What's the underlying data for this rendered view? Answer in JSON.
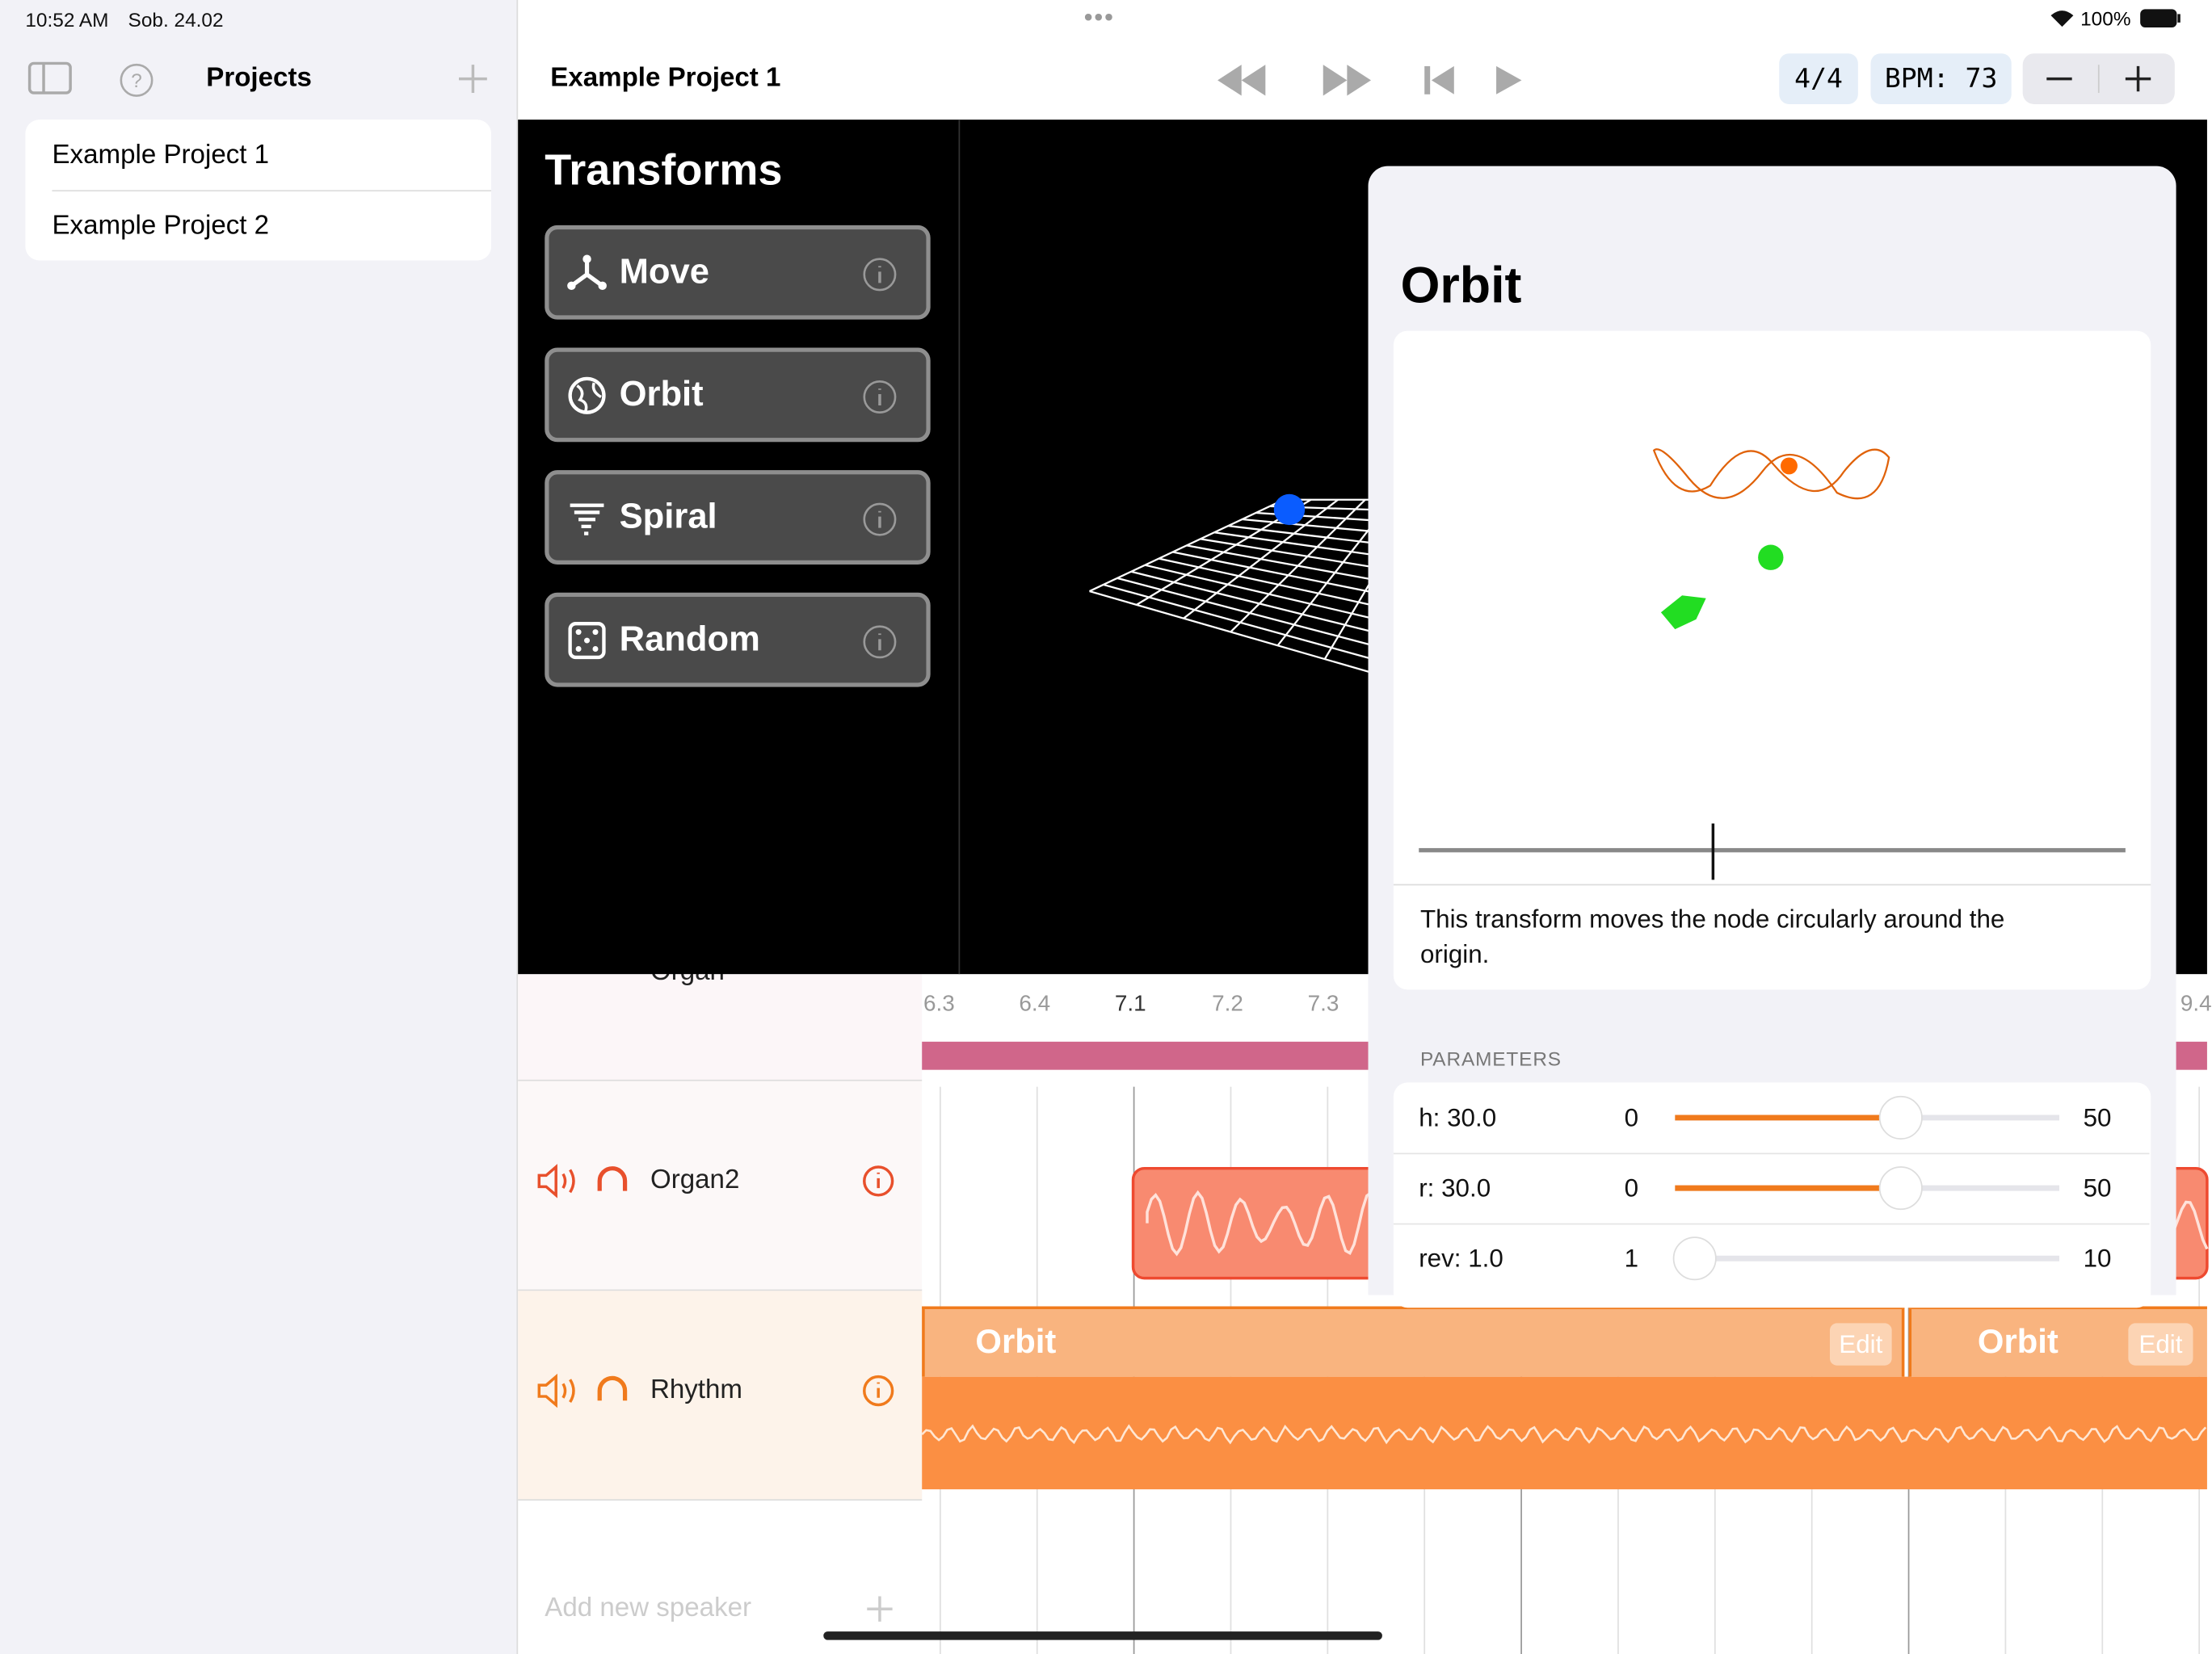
{
  "status_bar": {
    "time": "10:52 AM",
    "date": "Sob. 24.02",
    "battery": "100%"
  },
  "sidebar": {
    "title": "Projects",
    "projects": [
      "Example Project 1",
      "Example Project 2"
    ]
  },
  "toolbar": {
    "title": "Example Project 1",
    "time_signature": "4/4",
    "bpm": "BPM: 73"
  },
  "transforms": {
    "title": "Transforms",
    "items": [
      "Move",
      "Orbit",
      "Spiral",
      "Random"
    ]
  },
  "popover": {
    "title": "Orbit",
    "description": "This transform moves the node circularly around the origin.",
    "parameters_header": "PARAMETERS",
    "parameters": [
      {
        "label": "h: 30.0",
        "value": 30,
        "min": 0,
        "max": 50
      },
      {
        "label": "r: 30.0",
        "value": 30,
        "min": 0,
        "max": 50
      },
      {
        "label": "rev: 1.0",
        "value": 1,
        "min": 1,
        "max": 10
      }
    ]
  },
  "timeline": {
    "ticks": [
      "6.3",
      "6.4",
      "7.1",
      "7.2",
      "7.3",
      "9.4"
    ],
    "tracks": [
      "Organ",
      "Organ2",
      "Rhythm"
    ],
    "clips": [
      {
        "label": "Orbit",
        "button": "Edit"
      },
      {
        "label": "Orbit",
        "button": "Edit"
      }
    ],
    "add_speaker": "Add new speaker"
  }
}
